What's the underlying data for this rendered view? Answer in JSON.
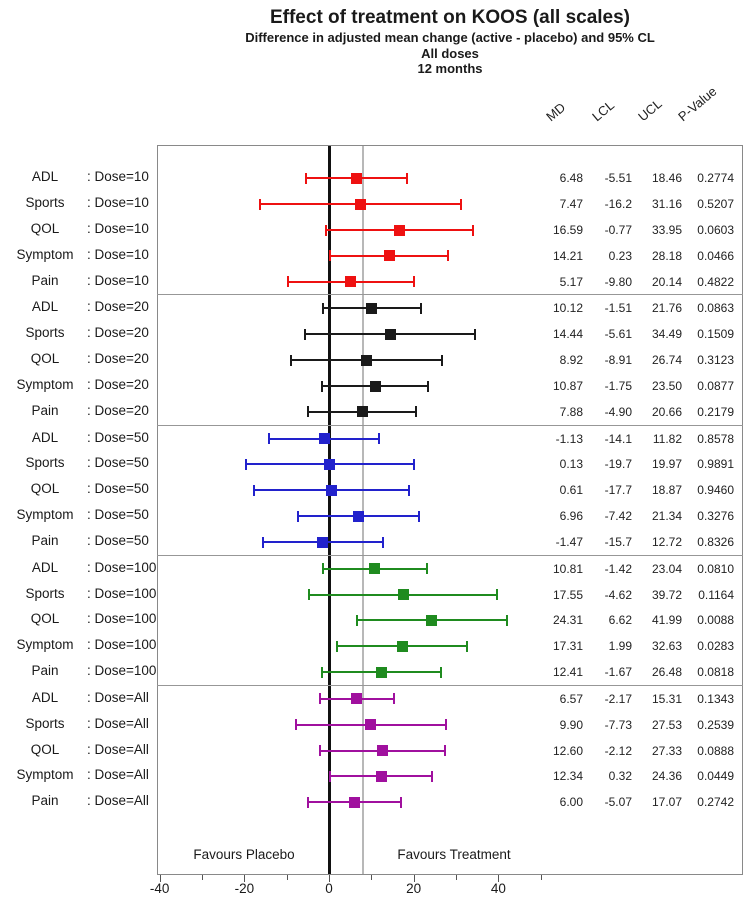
{
  "header": {
    "title": "Effect of treatment on KOOS (all scales)",
    "subtitle1": "Difference in adjusted mean change (active - placebo) and 95% CL",
    "subtitle2": "All doses",
    "subtitle3": "12 months"
  },
  "columns": [
    "MD",
    "LCL",
    "UCL",
    "P-Value"
  ],
  "footer": {
    "favours_left": "Favours Placebo",
    "favours_right": "Favours Treatment"
  },
  "chart_data": {
    "type": "forest",
    "xlim": [
      -40.6,
      50.6
    ],
    "x_ticks_major": [
      -40,
      -20,
      0,
      20,
      40
    ],
    "x_ticks_minor": [
      -30,
      -10,
      10,
      30,
      50
    ],
    "reference_lines": [
      {
        "value": 8,
        "color": "#b8b8b8",
        "width": 2
      },
      {
        "value": 0,
        "color": "#111111",
        "width": 3
      }
    ],
    "legend_note": "colors encode dose group",
    "groups": [
      {
        "dose_label": "Dose=10",
        "color": "#ee1111",
        "rows": [
          {
            "scale": "ADL",
            "md": "6.48",
            "lcl": "-5.51",
            "ucl": "18.46",
            "p": "0.2774"
          },
          {
            "scale": "Sports",
            "md": "7.47",
            "lcl": "-16.2",
            "ucl": "31.16",
            "p": "0.5207"
          },
          {
            "scale": "QOL",
            "md": "16.59",
            "lcl": "-0.77",
            "ucl": "33.95",
            "p": "0.0603"
          },
          {
            "scale": "Symptom",
            "md": "14.21",
            "lcl": "0.23",
            "ucl": "28.18",
            "p": "0.0466"
          },
          {
            "scale": "Pain",
            "md": "5.17",
            "lcl": "-9.80",
            "ucl": "20.14",
            "p": "0.4822"
          }
        ]
      },
      {
        "dose_label": "Dose=20",
        "color": "#1a1a1a",
        "rows": [
          {
            "scale": "ADL",
            "md": "10.12",
            "lcl": "-1.51",
            "ucl": "21.76",
            "p": "0.0863"
          },
          {
            "scale": "Sports",
            "md": "14.44",
            "lcl": "-5.61",
            "ucl": "34.49",
            "p": "0.1509"
          },
          {
            "scale": "QOL",
            "md": "8.92",
            "lcl": "-8.91",
            "ucl": "26.74",
            "p": "0.3123"
          },
          {
            "scale": "Symptom",
            "md": "10.87",
            "lcl": "-1.75",
            "ucl": "23.50",
            "p": "0.0877"
          },
          {
            "scale": "Pain",
            "md": "7.88",
            "lcl": "-4.90",
            "ucl": "20.66",
            "p": "0.2179"
          }
        ]
      },
      {
        "dose_label": "Dose=50",
        "color": "#2222cc",
        "rows": [
          {
            "scale": "ADL",
            "md": "-1.13",
            "lcl": "-14.1",
            "ucl": "11.82",
            "p": "0.8578"
          },
          {
            "scale": "Sports",
            "md": "0.13",
            "lcl": "-19.7",
            "ucl": "19.97",
            "p": "0.9891"
          },
          {
            "scale": "QOL",
            "md": "0.61",
            "lcl": "-17.7",
            "ucl": "18.87",
            "p": "0.9460"
          },
          {
            "scale": "Symptom",
            "md": "6.96",
            "lcl": "-7.42",
            "ucl": "21.34",
            "p": "0.3276"
          },
          {
            "scale": "Pain",
            "md": "-1.47",
            "lcl": "-15.7",
            "ucl": "12.72",
            "p": "0.8326"
          }
        ]
      },
      {
        "dose_label": "Dose=100",
        "color": "#1f8b1f",
        "rows": [
          {
            "scale": "ADL",
            "md": "10.81",
            "lcl": "-1.42",
            "ucl": "23.04",
            "p": "0.0810"
          },
          {
            "scale": "Sports",
            "md": "17.55",
            "lcl": "-4.62",
            "ucl": "39.72",
            "p": "0.1164"
          },
          {
            "scale": "QOL",
            "md": "24.31",
            "lcl": "6.62",
            "ucl": "41.99",
            "p": "0.0088"
          },
          {
            "scale": "Symptom",
            "md": "17.31",
            "lcl": "1.99",
            "ucl": "32.63",
            "p": "0.0283"
          },
          {
            "scale": "Pain",
            "md": "12.41",
            "lcl": "-1.67",
            "ucl": "26.48",
            "p": "0.0818"
          }
        ]
      },
      {
        "dose_label": "Dose=All",
        "color": "#a0109e",
        "rows": [
          {
            "scale": "ADL",
            "md": "6.57",
            "lcl": "-2.17",
            "ucl": "15.31",
            "p": "0.1343"
          },
          {
            "scale": "Sports",
            "md": "9.90",
            "lcl": "-7.73",
            "ucl": "27.53",
            "p": "0.2539"
          },
          {
            "scale": "QOL",
            "md": "12.60",
            "lcl": "-2.12",
            "ucl": "27.33",
            "p": "0.0888"
          },
          {
            "scale": "Symptom",
            "md": "12.34",
            "lcl": "0.32",
            "ucl": "24.36",
            "p": "0.0449"
          },
          {
            "scale": "Pain",
            "md": "6.00",
            "lcl": "-5.07",
            "ucl": "17.07",
            "p": "0.2742"
          }
        ]
      }
    ]
  }
}
